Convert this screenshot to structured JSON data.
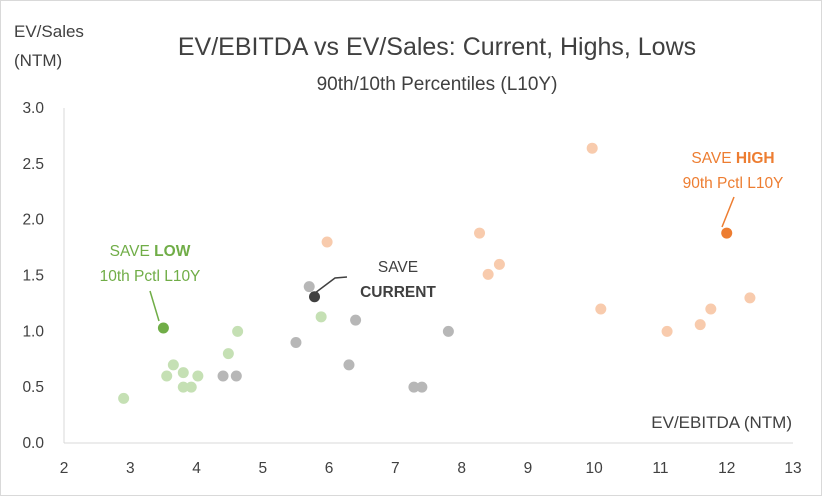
{
  "chart_data": {
    "type": "scatter",
    "title": "EV/EBITDA vs EV/Sales: Current, Highs, Lows",
    "subtitle": "90th/10th Percentiles (L10Y)",
    "xlabel": "EV/EBITDA (NTM)",
    "ylabel_line1": "EV/Sales",
    "ylabel_line2": "(NTM)",
    "xlim": [
      2,
      13
    ],
    "ylim": [
      0,
      3
    ],
    "x_ticks": [
      "2",
      "3",
      "4",
      "5",
      "6",
      "7",
      "8",
      "9",
      "10",
      "11",
      "12",
      "13"
    ],
    "y_ticks": [
      "0.0",
      "0.5",
      "1.0",
      "1.5",
      "2.0",
      "2.5",
      "3.0"
    ],
    "grid": false,
    "series": [
      {
        "name": "low-peers",
        "color": "#c5e0b4",
        "points": [
          [
            2.9,
            0.4
          ],
          [
            3.55,
            0.6
          ],
          [
            3.65,
            0.7
          ],
          [
            3.8,
            0.5
          ],
          [
            3.8,
            0.63
          ],
          [
            3.92,
            0.5
          ],
          [
            4.02,
            0.6
          ],
          [
            4.48,
            0.8
          ],
          [
            4.62,
            1.0
          ],
          [
            5.88,
            1.13
          ]
        ]
      },
      {
        "name": "current-peers",
        "color": "#b7b7b7",
        "points": [
          [
            4.4,
            0.6
          ],
          [
            4.6,
            0.6
          ],
          [
            5.5,
            0.9
          ],
          [
            5.7,
            1.4
          ],
          [
            6.3,
            0.7
          ],
          [
            6.4,
            1.1
          ],
          [
            7.28,
            0.5
          ],
          [
            7.4,
            0.5
          ],
          [
            7.8,
            1.0
          ]
        ]
      },
      {
        "name": "high-peers",
        "color": "#f8cbad",
        "points": [
          [
            5.97,
            1.8
          ],
          [
            8.27,
            1.88
          ],
          [
            8.4,
            1.51
          ],
          [
            8.57,
            1.6
          ],
          [
            9.97,
            2.64
          ],
          [
            10.1,
            1.2
          ],
          [
            11.1,
            1.0
          ],
          [
            11.6,
            1.06
          ],
          [
            11.76,
            1.2
          ],
          [
            12.35,
            1.3
          ]
        ]
      }
    ],
    "highlights": [
      {
        "name": "save-low",
        "x": 3.5,
        "y": 1.03,
        "color": "#70ad47",
        "line1": "SAVE ",
        "bold": "LOW",
        "line2": "10th Pctl L10Y"
      },
      {
        "name": "save-current",
        "x": 5.78,
        "y": 1.31,
        "color": "#404040",
        "line1": "SAVE",
        "bold": "CURRENT",
        "line2": ""
      },
      {
        "name": "save-high",
        "x": 12.0,
        "y": 1.88,
        "color": "#ed7d31",
        "line1": "SAVE ",
        "bold": "HIGH",
        "line2": "90th Pctl L10Y"
      }
    ]
  }
}
